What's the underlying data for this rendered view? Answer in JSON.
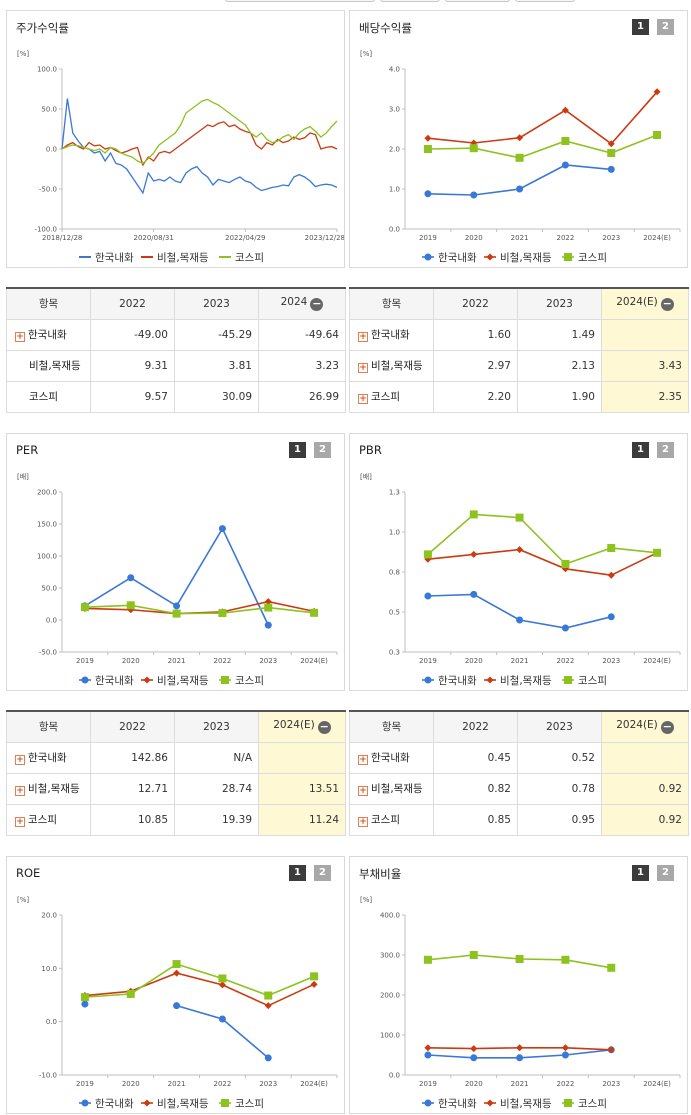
{
  "colors": {
    "hanguk": "#3a78d8",
    "bicheol": "#cc3a10",
    "kospi": "#8dc21f"
  },
  "legend": [
    "한국내화",
    "비철,목재등",
    "코스피"
  ],
  "page_buttons": [
    "1",
    "2"
  ],
  "charts": [
    {
      "id": "stock_return",
      "title": "주가수익률",
      "chart_data": {
        "type": "line",
        "unit": "[%]",
        "ylim": [
          -100,
          100
        ],
        "yticks": [
          "100.0",
          "50.0",
          "0.0",
          "-50.0",
          "-100.0"
        ],
        "xticks": [
          "2018/12/28",
          "2020/08/31",
          "2022/04/29",
          "2023/12/28"
        ],
        "series": [
          {
            "name": "한국내화",
            "values": [
              0,
              63,
              20,
              10,
              2,
              0,
              -5,
              -3,
              -15,
              -5,
              -18,
              -20,
              -25,
              -35,
              -45,
              -55,
              -30,
              -40,
              -38,
              -40,
              -35,
              -40,
              -42,
              -30,
              -25,
              -22,
              -30,
              -35,
              -45,
              -38,
              -40,
              -42,
              -38,
              -35,
              -40,
              -42,
              -48,
              -52,
              -50,
              -48,
              -47,
              -45,
              -46,
              -35,
              -32,
              -35,
              -40,
              -47,
              -45,
              -44,
              -45,
              -48
            ]
          },
          {
            "name": "비철,목재등",
            "values": [
              0,
              5,
              8,
              3,
              0,
              8,
              4,
              5,
              0,
              2,
              -2,
              -5,
              -3,
              0,
              2,
              -20,
              -10,
              -15,
              -5,
              -3,
              -5,
              0,
              5,
              10,
              15,
              20,
              25,
              30,
              28,
              32,
              34,
              28,
              30,
              25,
              22,
              20,
              5,
              0,
              8,
              5,
              12,
              8,
              10,
              15,
              12,
              14,
              20,
              18,
              0,
              2,
              3,
              0
            ]
          },
          {
            "name": "코스피",
            "values": [
              0,
              3,
              5,
              4,
              2,
              0,
              -2,
              0,
              -5,
              2,
              0,
              -5,
              -8,
              -10,
              -15,
              -18,
              -12,
              -5,
              5,
              10,
              15,
              20,
              30,
              45,
              50,
              55,
              60,
              62,
              58,
              55,
              50,
              45,
              40,
              35,
              30,
              20,
              15,
              20,
              12,
              8,
              10,
              15,
              18,
              12,
              20,
              25,
              28,
              22,
              15,
              20,
              28,
              35
            ]
          }
        ]
      }
    },
    {
      "id": "dividend",
      "title": "배당수익률",
      "chart_data": {
        "type": "line",
        "unit": "[%]",
        "ylim": [
          0,
          4
        ],
        "yticks": [
          "4.0",
          "3.0",
          "2.0",
          "1.0",
          "0.0"
        ],
        "categories": [
          "2019",
          "2020",
          "2021",
          "2022",
          "2023",
          "2024(E)"
        ],
        "series": [
          {
            "name": "한국내화",
            "values": [
              0.88,
              0.85,
              1.0,
              1.6,
              1.49,
              null
            ]
          },
          {
            "name": "비철,목재등",
            "values": [
              2.27,
              2.15,
              2.28,
              2.97,
              2.13,
              3.43
            ]
          },
          {
            "name": "코스피",
            "values": [
              2.0,
              2.02,
              1.78,
              2.2,
              1.9,
              2.35
            ]
          }
        ]
      }
    },
    {
      "id": "per",
      "title": "PER",
      "chart_data": {
        "type": "line",
        "unit": "[배]",
        "ylim": [
          -50,
          200
        ],
        "yticks": [
          "200.0",
          "150.0",
          "100.0",
          "50.0",
          "0.0",
          "-50.0"
        ],
        "categories": [
          "2019",
          "2020",
          "2021",
          "2022",
          "2023",
          "2024(E)"
        ],
        "series": [
          {
            "name": "한국내화",
            "values": [
              22,
              66,
              22,
              142.86,
              -8,
              null
            ]
          },
          {
            "name": "비철,목재등",
            "values": [
              18,
              16,
              10,
              12.71,
              28.74,
              13.51
            ]
          },
          {
            "name": "코스피",
            "values": [
              20,
              23,
              10,
              10.85,
              19.39,
              11.24
            ]
          }
        ]
      }
    },
    {
      "id": "pbr",
      "title": "PBR",
      "chart_data": {
        "type": "line",
        "unit": "[배]",
        "ylim": [
          0.3,
          1.3
        ],
        "yticks": [
          "1.3",
          "1.0",
          "0.8",
          "0.5",
          "0.3"
        ],
        "categories": [
          "2019",
          "2020",
          "2021",
          "2022",
          "2023",
          "2024(E)"
        ],
        "series": [
          {
            "name": "한국내화",
            "values": [
              0.65,
              0.66,
              0.5,
              0.45,
              0.52,
              null
            ]
          },
          {
            "name": "비철,목재등",
            "values": [
              0.88,
              0.91,
              0.94,
              0.82,
              0.78,
              0.92
            ]
          },
          {
            "name": "코스피",
            "values": [
              0.91,
              1.16,
              1.14,
              0.85,
              0.95,
              0.92
            ]
          }
        ]
      }
    },
    {
      "id": "roe",
      "title": "ROE",
      "chart_data": {
        "type": "line",
        "unit": "[%]",
        "ylim": [
          -10,
          20
        ],
        "yticks": [
          "20.0",
          "10.0",
          "0.0",
          "-10.0"
        ],
        "categories": [
          "2019",
          "2020",
          "2021",
          "2022",
          "2023",
          "2024(E)"
        ],
        "series": [
          {
            "name": "한국내화",
            "values": [
              3.3,
              null,
              3.0,
              0.5,
              -6.8,
              null
            ]
          },
          {
            "name": "비철,목재등",
            "values": [
              4.9,
              5.7,
              9.1,
              6.9,
              3.0,
              7.0
            ]
          },
          {
            "name": "코스피",
            "values": [
              4.6,
              5.2,
              10.8,
              8.1,
              4.9,
              8.5
            ]
          }
        ]
      }
    },
    {
      "id": "debt",
      "title": "부채비율",
      "chart_data": {
        "type": "line",
        "unit": "[%]",
        "ylim": [
          0,
          400
        ],
        "yticks": [
          "400.0",
          "300.0",
          "200.0",
          "100.0",
          "0.0"
        ],
        "categories": [
          "2019",
          "2020",
          "2021",
          "2022",
          "2023",
          "2024(E)"
        ],
        "series": [
          {
            "name": "한국내화",
            "values": [
              50,
              43,
              43,
              50,
              63,
              null
            ]
          },
          {
            "name": "비철,목재등",
            "values": [
              68,
              66,
              68,
              68,
              63,
              null
            ]
          },
          {
            "name": "코스피",
            "values": [
              288,
              300,
              290,
              288,
              268,
              null
            ]
          }
        ]
      }
    }
  ],
  "tables": {
    "stock_return": {
      "header": [
        "항목",
        "2022",
        "2023",
        "2024"
      ],
      "has_minus_toggle": true,
      "rows": [
        {
          "label": "한국내화",
          "expand": true,
          "values": [
            "-49.00",
            "-45.29",
            "-49.64"
          ]
        },
        {
          "label": "비철,목재등",
          "expand": false,
          "values": [
            "9.31",
            "3.81",
            "3.23"
          ]
        },
        {
          "label": "코스피",
          "expand": false,
          "values": [
            "9.57",
            "30.09",
            "26.99"
          ]
        }
      ]
    },
    "dividend": {
      "header": [
        "항목",
        "2022",
        "2023",
        "2024(E)"
      ],
      "has_minus_toggle": true,
      "rows": [
        {
          "label": "한국내화",
          "expand": true,
          "values": [
            "1.60",
            "1.49",
            ""
          ]
        },
        {
          "label": "비철,목재등",
          "expand": true,
          "values": [
            "2.97",
            "2.13",
            "3.43"
          ]
        },
        {
          "label": "코스피",
          "expand": true,
          "values": [
            "2.20",
            "1.90",
            "2.35"
          ]
        }
      ]
    },
    "per": {
      "header": [
        "항목",
        "2022",
        "2023",
        "2024(E)"
      ],
      "has_minus_toggle": true,
      "rows": [
        {
          "label": "한국내화",
          "expand": true,
          "values": [
            "142.86",
            "N/A",
            ""
          ]
        },
        {
          "label": "비철,목재등",
          "expand": true,
          "values": [
            "12.71",
            "28.74",
            "13.51"
          ]
        },
        {
          "label": "코스피",
          "expand": true,
          "values": [
            "10.85",
            "19.39",
            "11.24"
          ]
        }
      ]
    },
    "pbr": {
      "header": [
        "항목",
        "2022",
        "2023",
        "2024(E)"
      ],
      "has_minus_toggle": true,
      "rows": [
        {
          "label": "한국내화",
          "expand": true,
          "values": [
            "0.45",
            "0.52",
            ""
          ]
        },
        {
          "label": "비철,목재등",
          "expand": true,
          "values": [
            "0.82",
            "0.78",
            "0.92"
          ]
        },
        {
          "label": "코스피",
          "expand": true,
          "values": [
            "0.85",
            "0.95",
            "0.92"
          ]
        }
      ]
    }
  }
}
